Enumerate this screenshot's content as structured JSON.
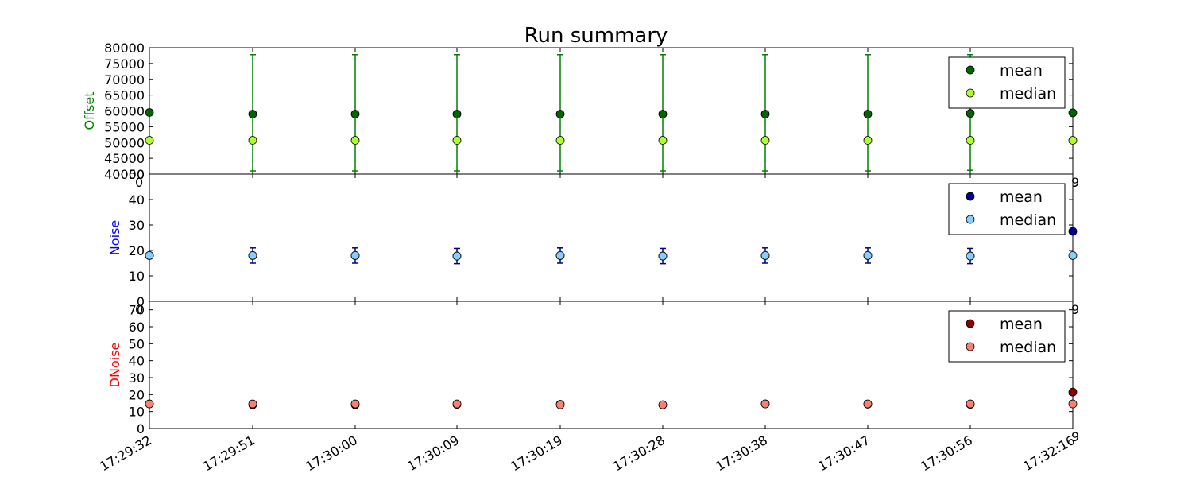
{
  "chart_data": {
    "type": "scatter",
    "title": "Run summary",
    "x_categories": [
      "17:29:32",
      "17:29:51",
      "17:30:00",
      "17:30:09",
      "17:30:19",
      "17:30:28",
      "17:30:38",
      "17:30:47",
      "17:30:56",
      "17:32:16"
    ],
    "grid": false,
    "panels": [
      {
        "ylabel": "Offset",
        "ylabel_color": "#008000",
        "ylim": [
          40000,
          80000
        ],
        "yticks": [
          40000,
          45000,
          50000,
          55000,
          60000,
          65000,
          70000,
          75000,
          80000
        ],
        "overlap_tick_labels": [
          "50",
          "0",
          "9"
        ],
        "legend_position": "top-right",
        "series": [
          {
            "name": "mean",
            "color": "#006400",
            "values": [
              59500,
              59000,
              59000,
              59000,
              59000,
              59000,
              59000,
              59000,
              59200,
              59400
            ],
            "err_low": [
              0,
              18000,
              18000,
              18000,
              18000,
              18000,
              18000,
              18000,
              18000,
              0
            ],
            "err_high": [
              0,
              18800,
              18800,
              18800,
              18800,
              18800,
              18800,
              18800,
              18600,
              0
            ],
            "error_color": "#008000"
          },
          {
            "name": "median",
            "color": "#adff2f",
            "values": [
              50700,
              50700,
              50700,
              50700,
              50700,
              50700,
              50700,
              50700,
              50700,
              50700
            ]
          }
        ]
      },
      {
        "ylabel": "Noise",
        "ylabel_color": "#0000ff",
        "ylim": [
          0,
          50
        ],
        "yticks": [
          0,
          10,
          20,
          30,
          40
        ],
        "overlap_tick_labels": [
          "0",
          "9"
        ],
        "legend_position": "top-right",
        "series": [
          {
            "name": "mean",
            "color": "#00008b",
            "values": [
              18,
              18,
              18,
              17.8,
              18,
              17.8,
              18,
              18,
              17.8,
              27.5
            ],
            "err_low": [
              0,
              3,
              3,
              3,
              3,
              3,
              3,
              3,
              3,
              0
            ],
            "err_high": [
              0,
              3,
              3,
              3,
              3,
              3,
              3,
              3,
              3,
              0
            ],
            "error_color": "#00008b"
          },
          {
            "name": "median",
            "color": "#87cefa",
            "values": [
              18,
              18,
              18,
              17.8,
              18,
              17.8,
              18,
              18,
              17.8,
              18
            ]
          }
        ]
      },
      {
        "ylabel": "DNoise",
        "ylabel_color": "#ff0000",
        "ylim": [
          0,
          75
        ],
        "yticks": [
          0,
          10,
          20,
          30,
          40,
          50,
          60,
          70
        ],
        "overlap_tick_labels": [
          "9"
        ],
        "legend_position": "top-right",
        "series": [
          {
            "name": "mean",
            "color": "#8b0000",
            "values": [
              14.5,
              14,
              14,
              14.2,
              14.3,
              14,
              14.5,
              14.3,
              14.2,
              21.5
            ]
          },
          {
            "name": "median",
            "color": "#fa8072",
            "values": [
              14.5,
              14.5,
              14.5,
              14.5,
              14,
              14,
              14.5,
              14.5,
              14.5,
              14.5
            ]
          }
        ]
      }
    ]
  }
}
